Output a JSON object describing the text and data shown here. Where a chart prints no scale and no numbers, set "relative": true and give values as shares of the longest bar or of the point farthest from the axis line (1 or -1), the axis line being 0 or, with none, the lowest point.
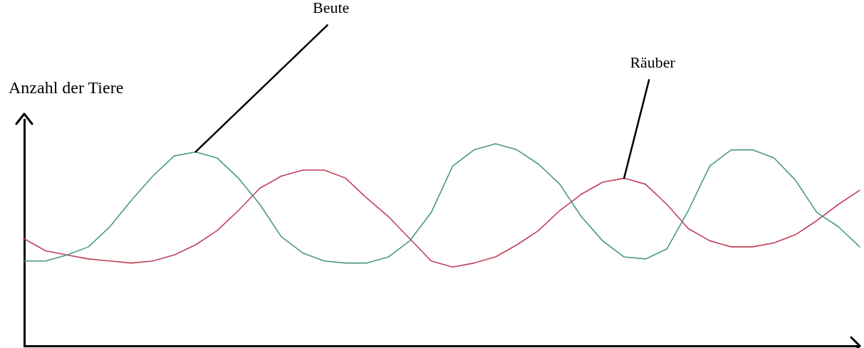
{
  "chart_data": {
    "type": "line",
    "relative": true,
    "ylabel": "Anzahl der Tiere",
    "legend": false,
    "grid": false,
    "marker": "none",
    "line_style": "solid",
    "tick_labels": false,
    "categories": [
      null,
      null,
      null,
      null,
      null,
      null,
      null,
      null,
      null,
      null,
      null,
      null,
      null,
      null,
      null,
      null,
      null,
      null,
      null,
      null,
      null,
      null,
      null,
      null,
      null,
      null,
      null,
      null,
      null,
      null,
      null,
      null,
      null,
      null,
      null,
      null,
      null,
      null,
      null,
      null
    ],
    "series": [
      {
        "name": "Beute",
        "color": "#4a9a7a",
        "values": [
          0.42,
          0.42,
          0.45,
          0.49,
          0.59,
          0.72,
          0.84,
          0.94,
          0.96,
          0.93,
          0.83,
          0.7,
          0.54,
          0.46,
          0.42,
          0.41,
          0.41,
          0.44,
          0.52,
          0.66,
          0.89,
          0.97,
          1.0,
          0.97,
          0.9,
          0.8,
          0.64,
          0.52,
          0.44,
          0.43,
          0.48,
          0.67,
          0.89,
          0.97,
          0.97,
          0.93,
          0.82,
          0.66,
          0.59,
          0.49
        ]
      },
      {
        "name": "Räuber",
        "color": "#c0405a",
        "values": [
          0.53,
          0.47,
          0.45,
          0.43,
          0.42,
          0.41,
          0.42,
          0.45,
          0.5,
          0.57,
          0.67,
          0.78,
          0.84,
          0.87,
          0.87,
          0.83,
          0.73,
          0.64,
          0.53,
          0.42,
          0.39,
          0.41,
          0.44,
          0.5,
          0.57,
          0.67,
          0.75,
          0.81,
          0.83,
          0.8,
          0.7,
          0.58,
          0.52,
          0.49,
          0.49,
          0.51,
          0.55,
          0.62,
          0.7,
          0.77
        ]
      }
    ]
  }
}
